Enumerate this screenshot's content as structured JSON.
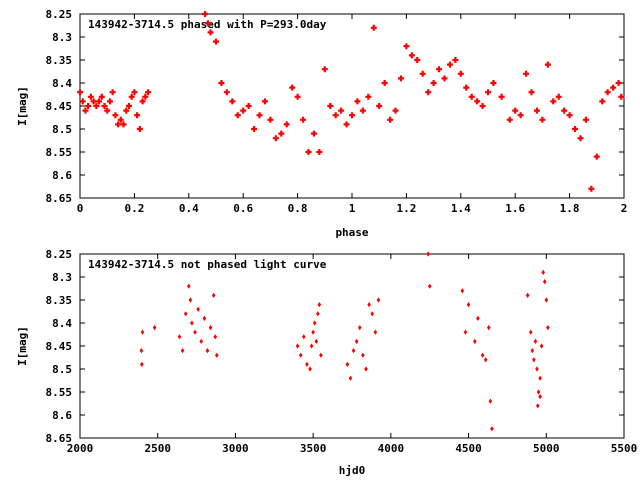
{
  "chart_data": [
    {
      "type": "scatter",
      "title": "143942-3714.5 phased with P=293.0day",
      "xlabel": "phase",
      "ylabel": "I[mag]",
      "xlim": [
        0,
        2
      ],
      "ylim": [
        8.65,
        8.25
      ],
      "xticks": [
        "0",
        "0.2",
        "0.4",
        "0.6",
        "0.8",
        "1",
        "1.2",
        "1.4",
        "1.6",
        "1.8",
        "2"
      ],
      "yticks": [
        "8.25",
        "8.3",
        "8.35",
        "8.4",
        "8.45",
        "8.5",
        "8.55",
        "8.6",
        "8.65"
      ],
      "marker": "plus",
      "color": "#ff0000",
      "points": [
        [
          0.0,
          8.42
        ],
        [
          0.01,
          8.44
        ],
        [
          0.02,
          8.46
        ],
        [
          0.03,
          8.45
        ],
        [
          0.04,
          8.43
        ],
        [
          0.05,
          8.44
        ],
        [
          0.06,
          8.45
        ],
        [
          0.07,
          8.44
        ],
        [
          0.08,
          8.43
        ],
        [
          0.09,
          8.45
        ],
        [
          0.1,
          8.46
        ],
        [
          0.11,
          8.44
        ],
        [
          0.12,
          8.42
        ],
        [
          0.13,
          8.47
        ],
        [
          0.14,
          8.49
        ],
        [
          0.15,
          8.48
        ],
        [
          0.16,
          8.49
        ],
        [
          0.17,
          8.46
        ],
        [
          0.18,
          8.45
        ],
        [
          0.19,
          8.43
        ],
        [
          0.2,
          8.42
        ],
        [
          0.21,
          8.47
        ],
        [
          0.22,
          8.5
        ],
        [
          0.23,
          8.44
        ],
        [
          0.24,
          8.43
        ],
        [
          0.25,
          8.42
        ],
        [
          0.46,
          8.25
        ],
        [
          0.47,
          8.27
        ],
        [
          0.48,
          8.29
        ],
        [
          0.5,
          8.31
        ],
        [
          0.52,
          8.4
        ],
        [
          0.54,
          8.42
        ],
        [
          0.56,
          8.44
        ],
        [
          0.58,
          8.47
        ],
        [
          0.6,
          8.46
        ],
        [
          0.62,
          8.45
        ],
        [
          0.64,
          8.5
        ],
        [
          0.66,
          8.47
        ],
        [
          0.68,
          8.44
        ],
        [
          0.7,
          8.48
        ],
        [
          0.72,
          8.52
        ],
        [
          0.74,
          8.51
        ],
        [
          0.76,
          8.49
        ],
        [
          0.78,
          8.41
        ],
        [
          0.8,
          8.43
        ],
        [
          0.82,
          8.48
        ],
        [
          0.84,
          8.55
        ],
        [
          0.86,
          8.51
        ],
        [
          0.88,
          8.55
        ],
        [
          0.9,
          8.37
        ],
        [
          0.92,
          8.45
        ],
        [
          0.94,
          8.47
        ],
        [
          0.96,
          8.46
        ],
        [
          0.98,
          8.49
        ],
        [
          1.0,
          8.47
        ],
        [
          1.02,
          8.44
        ],
        [
          1.04,
          8.46
        ],
        [
          1.06,
          8.43
        ],
        [
          1.08,
          8.28
        ],
        [
          1.1,
          8.45
        ],
        [
          1.12,
          8.4
        ],
        [
          1.14,
          8.48
        ],
        [
          1.16,
          8.46
        ],
        [
          1.18,
          8.39
        ],
        [
          1.2,
          8.32
        ],
        [
          1.22,
          8.34
        ],
        [
          1.24,
          8.35
        ],
        [
          1.26,
          8.38
        ],
        [
          1.28,
          8.42
        ],
        [
          1.3,
          8.4
        ],
        [
          1.32,
          8.37
        ],
        [
          1.34,
          8.39
        ],
        [
          1.36,
          8.36
        ],
        [
          1.38,
          8.35
        ],
        [
          1.4,
          8.38
        ],
        [
          1.42,
          8.41
        ],
        [
          1.44,
          8.43
        ],
        [
          1.46,
          8.44
        ],
        [
          1.48,
          8.45
        ],
        [
          1.5,
          8.42
        ],
        [
          1.52,
          8.4
        ],
        [
          1.55,
          8.43
        ],
        [
          1.58,
          8.48
        ],
        [
          1.6,
          8.46
        ],
        [
          1.62,
          8.47
        ],
        [
          1.64,
          8.38
        ],
        [
          1.66,
          8.42
        ],
        [
          1.68,
          8.46
        ],
        [
          1.7,
          8.48
        ],
        [
          1.72,
          8.36
        ],
        [
          1.74,
          8.44
        ],
        [
          1.76,
          8.43
        ],
        [
          1.78,
          8.46
        ],
        [
          1.8,
          8.47
        ],
        [
          1.82,
          8.5
        ],
        [
          1.84,
          8.52
        ],
        [
          1.86,
          8.48
        ],
        [
          1.88,
          8.63
        ],
        [
          1.9,
          8.56
        ],
        [
          1.92,
          8.44
        ],
        [
          1.94,
          8.42
        ],
        [
          1.96,
          8.41
        ],
        [
          1.98,
          8.4
        ],
        [
          1.99,
          8.43
        ]
      ]
    },
    {
      "type": "scatter",
      "title": "143942-3714.5 not phased light curve",
      "xlabel": "hjd0",
      "ylabel": "I[mag]",
      "xlim": [
        2000,
        5500
      ],
      "ylim": [
        8.65,
        8.25
      ],
      "xticks": [
        "2000",
        "2500",
        "3000",
        "3500",
        "4000",
        "4500",
        "5000",
        "5500"
      ],
      "yticks": [
        "8.25",
        "8.3",
        "8.35",
        "8.4",
        "8.45",
        "8.5",
        "8.55",
        "8.6",
        "8.65"
      ],
      "marker": "diamond",
      "color": "#ff0000",
      "points": [
        [
          2395,
          8.46
        ],
        [
          2398,
          8.49
        ],
        [
          2402,
          8.42
        ],
        [
          2480,
          8.41
        ],
        [
          2640,
          8.43
        ],
        [
          2660,
          8.46
        ],
        [
          2680,
          8.38
        ],
        [
          2700,
          8.32
        ],
        [
          2710,
          8.35
        ],
        [
          2720,
          8.4
        ],
        [
          2740,
          8.42
        ],
        [
          2760,
          8.37
        ],
        [
          2780,
          8.44
        ],
        [
          2800,
          8.39
        ],
        [
          2820,
          8.46
        ],
        [
          2840,
          8.41
        ],
        [
          2860,
          8.34
        ],
        [
          2870,
          8.43
        ],
        [
          2880,
          8.47
        ],
        [
          3400,
          8.45
        ],
        [
          3420,
          8.47
        ],
        [
          3440,
          8.43
        ],
        [
          3460,
          8.49
        ],
        [
          3480,
          8.5
        ],
        [
          3490,
          8.45
        ],
        [
          3500,
          8.42
        ],
        [
          3510,
          8.4
        ],
        [
          3520,
          8.44
        ],
        [
          3530,
          8.38
        ],
        [
          3540,
          8.36
        ],
        [
          3550,
          8.47
        ],
        [
          3720,
          8.49
        ],
        [
          3740,
          8.52
        ],
        [
          3760,
          8.46
        ],
        [
          3780,
          8.44
        ],
        [
          3800,
          8.41
        ],
        [
          3820,
          8.47
        ],
        [
          3840,
          8.5
        ],
        [
          3860,
          8.36
        ],
        [
          3880,
          8.38
        ],
        [
          3900,
          8.42
        ],
        [
          3920,
          8.35
        ],
        [
          4240,
          8.25
        ],
        [
          4250,
          8.32
        ],
        [
          4460,
          8.33
        ],
        [
          4480,
          8.42
        ],
        [
          4500,
          8.36
        ],
        [
          4540,
          8.44
        ],
        [
          4560,
          8.39
        ],
        [
          4590,
          8.47
        ],
        [
          4610,
          8.48
        ],
        [
          4630,
          8.41
        ],
        [
          4640,
          8.57
        ],
        [
          4650,
          8.63
        ],
        [
          4880,
          8.34
        ],
        [
          4900,
          8.42
        ],
        [
          4910,
          8.46
        ],
        [
          4920,
          8.48
        ],
        [
          4930,
          8.44
        ],
        [
          4940,
          8.5
        ],
        [
          4950,
          8.55
        ],
        [
          4960,
          8.52
        ],
        [
          4970,
          8.45
        ],
        [
          4980,
          8.29
        ],
        [
          4990,
          8.31
        ],
        [
          5000,
          8.35
        ],
        [
          5010,
          8.41
        ],
        [
          4960,
          8.56
        ],
        [
          4945,
          8.58
        ]
      ]
    }
  ]
}
